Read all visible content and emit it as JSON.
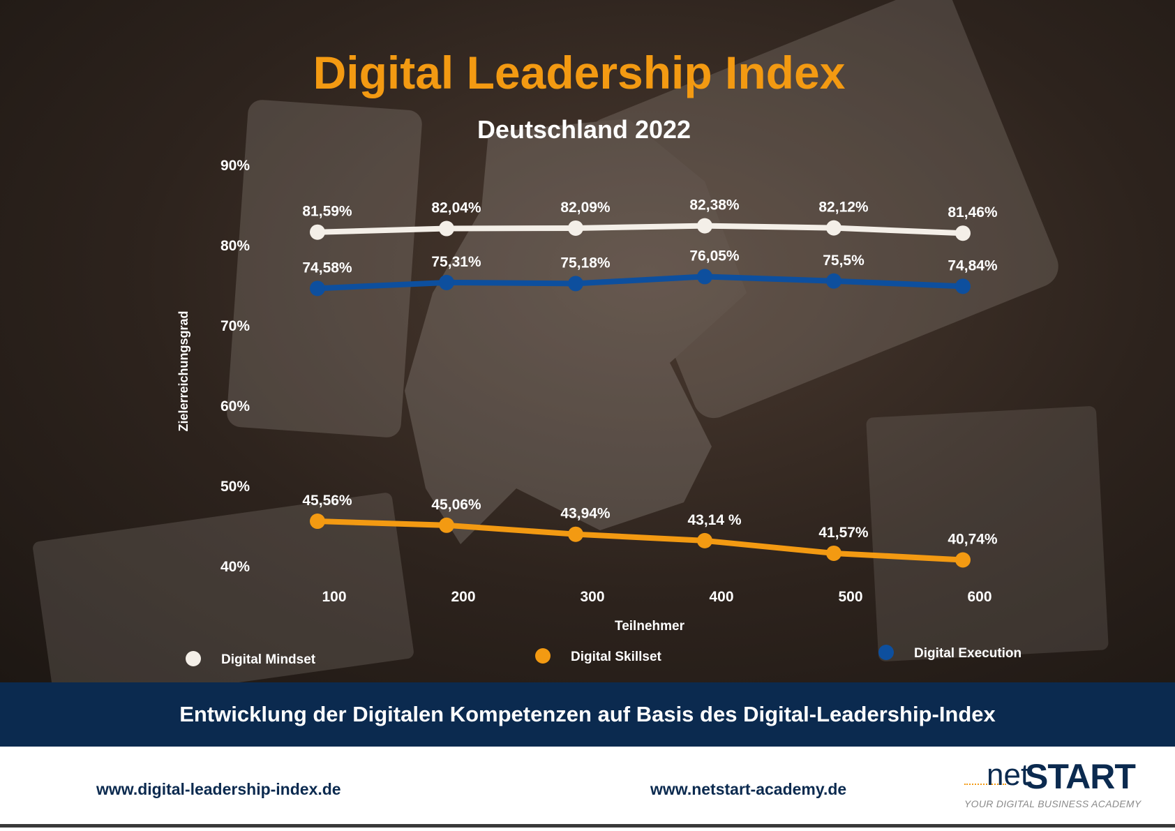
{
  "title": "Digital Leadership Index",
  "subtitle": "Deutschland 2022",
  "chart_data": {
    "type": "line",
    "title": "Digital Leadership Index",
    "subtitle": "Deutschland 2022",
    "xlabel": "Teilnehmer",
    "ylabel": "Zielerreichungsgrad",
    "x": [
      100,
      200,
      300,
      400,
      500,
      600
    ],
    "x_tick_labels": [
      "100",
      "200",
      "300",
      "400",
      "500",
      "600"
    ],
    "y_ticks": [
      40,
      50,
      60,
      70,
      80,
      90
    ],
    "y_tick_labels": [
      "40%",
      "50%",
      "60%",
      "70%",
      "80%",
      "90%"
    ],
    "ylim": [
      40,
      90
    ],
    "grid": false,
    "legend_position": "bottom",
    "series": [
      {
        "name": "Digital Mindset",
        "color": "#f4efe8",
        "values": [
          81.59,
          82.04,
          82.09,
          82.38,
          82.12,
          81.46
        ],
        "labels": [
          "81,59%",
          "82,04%",
          "82,09%",
          "82,38%",
          "82,12%",
          "81,46%"
        ]
      },
      {
        "name": "Digital Execution",
        "color": "#0d4f9e",
        "values": [
          74.58,
          75.31,
          75.18,
          76.05,
          75.5,
          74.84
        ],
        "labels": [
          "74,58%",
          "75,31%",
          "75,18%",
          "76,05%",
          "75,5%",
          "74,84%"
        ]
      },
      {
        "name": "Digital Skillset",
        "color": "#f39a12",
        "values": [
          45.56,
          45.06,
          43.94,
          43.14,
          41.57,
          40.74
        ],
        "labels": [
          "45,56%",
          "45,06%",
          "43,94%",
          "43,14 %",
          "41,57%",
          "40,74%"
        ]
      }
    ],
    "legend": [
      "Digital Mindset",
      "Digital Skillset",
      "Digital Execution"
    ]
  },
  "banner": "Entwicklung der Digitalen Kompetenzen auf Basis des Digital-Leadership-Index",
  "footer": {
    "url_left": "www.digital-leadership-index.de",
    "url_right": "www.netstart-academy.de",
    "logo_net": "net",
    "logo_start": "START",
    "logo_tagline": "YOUR DIGITAL BUSINESS ACADEMY"
  }
}
